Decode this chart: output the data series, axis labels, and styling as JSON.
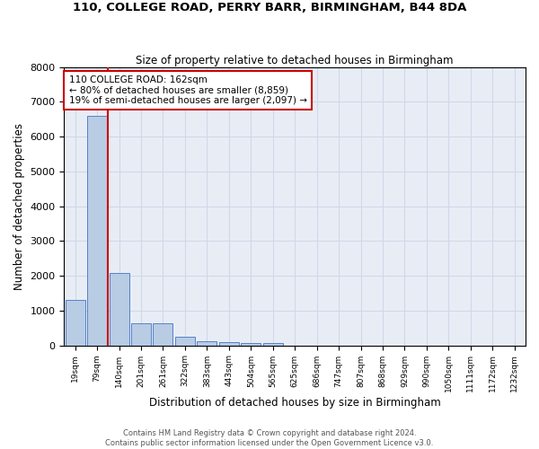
{
  "title1": "110, COLLEGE ROAD, PERRY BARR, BIRMINGHAM, B44 8DA",
  "title2": "Size of property relative to detached houses in Birmingham",
  "xlabel": "Distribution of detached houses by size in Birmingham",
  "ylabel": "Number of detached properties",
  "footnote1": "Contains HM Land Registry data © Crown copyright and database right 2024.",
  "footnote2": "Contains public sector information licensed under the Open Government Licence v3.0.",
  "bar_labels": [
    "19sqm",
    "79sqm",
    "140sqm",
    "201sqm",
    "261sqm",
    "322sqm",
    "383sqm",
    "443sqm",
    "504sqm",
    "565sqm",
    "625sqm",
    "686sqm",
    "747sqm",
    "807sqm",
    "868sqm",
    "929sqm",
    "990sqm",
    "1050sqm",
    "1111sqm",
    "1172sqm",
    "1232sqm"
  ],
  "bar_values": [
    1310,
    6600,
    2090,
    640,
    640,
    250,
    130,
    100,
    60,
    60,
    0,
    0,
    0,
    0,
    0,
    0,
    0,
    0,
    0,
    0,
    0
  ],
  "bar_color": "#b8cce4",
  "bar_edge_color": "#4472c4",
  "grid_color": "#d0d8e8",
  "bg_color": "#e8edf5",
  "vline_x_index": 2,
  "vline_color": "#cc0000",
  "annotation_line1": "110 COLLEGE ROAD: 162sqm",
  "annotation_line2": "← 80% of detached houses are smaller (8,859)",
  "annotation_line3": "19% of semi-detached houses are larger (2,097) →",
  "annotation_box_color": "#cc0000",
  "ylim": [
    0,
    8000
  ],
  "yticks": [
    0,
    1000,
    2000,
    3000,
    4000,
    5000,
    6000,
    7000,
    8000
  ]
}
